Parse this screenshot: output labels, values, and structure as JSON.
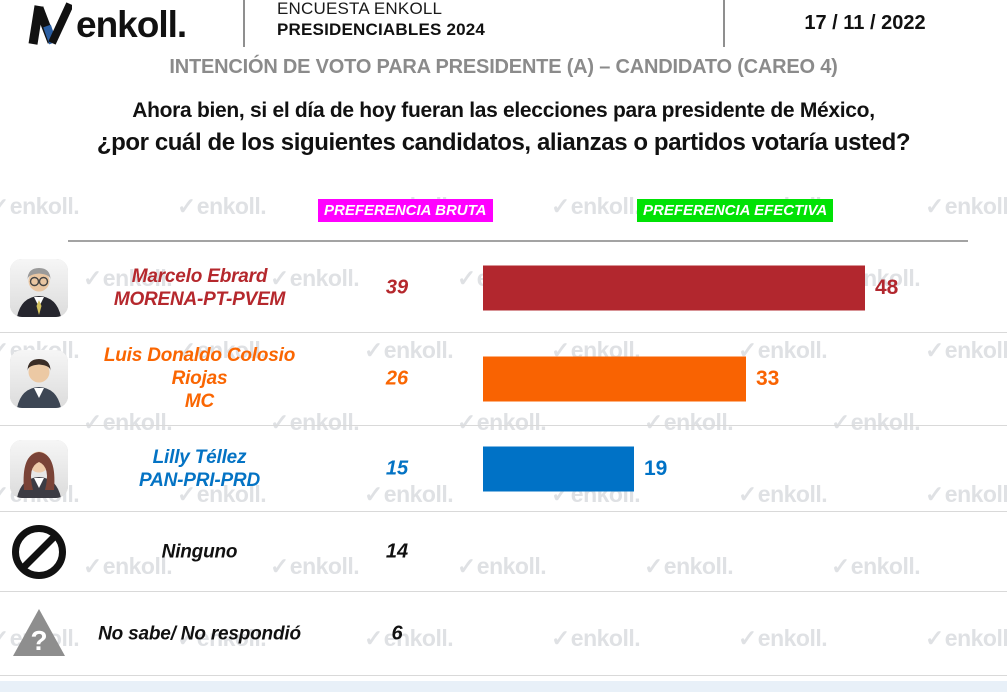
{
  "header": {
    "logo_text": "enkoll.",
    "survey_line1": "ENCUESTA ENKOLL",
    "survey_line2": "PRESIDENCIABLES 2024",
    "date": "17 / 11 / 2022"
  },
  "title": "INTENCIÓN DE VOTO PARA PRESIDENTE (A) – CANDIDATO (CAREO 4)",
  "question_line1": "Ahora bien, si el día de hoy fueran las elecciones para presidente de México,",
  "question_line2": "¿por cuál de los siguientes candidatos, alianzas o partidos votaría usted?",
  "columns": {
    "bruta": {
      "label": "PREFERENCIA BRUTA",
      "bg": "#ff00ff"
    },
    "efectiva": {
      "label": "PREFERENCIA EFECTIVA",
      "bg": "#00e205"
    }
  },
  "watermark_text": "enkoll.",
  "chart_data": {
    "type": "bar",
    "title": "INTENCIÓN DE VOTO PARA PRESIDENTE (A) – CANDIDATO (CAREO 4)",
    "subtitle": "¿por cuál de los siguientes candidatos, alianzas o partidos votaría usted?",
    "categories": [
      "Marcelo Ebrard (MORENA-PT-PVEM)",
      "Luis Donaldo Colosio Riojas (MC)",
      "Lilly Téllez (PAN-PRI-PRD)",
      "Ninguno",
      "No sabe/ No respondió"
    ],
    "series": [
      {
        "name": "PREFERENCIA BRUTA",
        "values": [
          39,
          26,
          15,
          14,
          6
        ]
      },
      {
        "name": "PREFERENCIA EFECTIVA",
        "values": [
          48,
          33,
          19,
          null,
          null
        ]
      }
    ],
    "bar_colors": [
      "#b2272e",
      "#f96302",
      "#0072c6",
      null,
      null
    ],
    "orientation": "horizontal",
    "value_labels_shown": true,
    "axis_shown": false,
    "xlim": [
      0,
      60
    ],
    "legend_position": "column-headers"
  },
  "rows": [
    {
      "name": "Marcelo Ebrard",
      "party": "MORENA-PT-PVEM",
      "bruta": "39",
      "efectiva": "48",
      "color": "#b5282d",
      "bar_color": "#b2272e",
      "icon": "ebrard-photo",
      "avatar": {
        "style": "male",
        "skin": "#e9c6a2",
        "hair": "#9a9a9a",
        "suit": "#26262e",
        "tie": "#d5c35f",
        "glasses": true
      }
    },
    {
      "name": "Luis Donaldo Colosio Riojas",
      "party": "MC",
      "bruta": "26",
      "efectiva": "33",
      "color": "#fa6602",
      "bar_color": "#f96302",
      "icon": "colosio-photo",
      "avatar": {
        "style": "male",
        "skin": "#ecc9a4",
        "hair": "#3a2d26",
        "suit": "#3d4654",
        "tie": null,
        "glasses": false
      }
    },
    {
      "name": "Lilly Téllez",
      "party": "PAN-PRI-PRD",
      "bruta": "15",
      "efectiva": "19",
      "color": "#0473c4",
      "bar_color": "#0072c6",
      "icon": "tellez-photo",
      "avatar": {
        "style": "female",
        "skin": "#efccab",
        "hair": "#7a4337",
        "suit": "#3c3c44",
        "tie": null,
        "glasses": false
      }
    },
    {
      "name": "Ninguno",
      "party": "",
      "bruta": "14",
      "efectiva": null,
      "color": "#111111",
      "bar_color": null,
      "icon": "no-symbol-icon",
      "avatar": null
    },
    {
      "name": "No sabe/ No respondió",
      "party": "",
      "bruta": "6",
      "efectiva": null,
      "color": "#111111",
      "bar_color": null,
      "icon": "question-mark-icon",
      "avatar": null
    }
  ]
}
